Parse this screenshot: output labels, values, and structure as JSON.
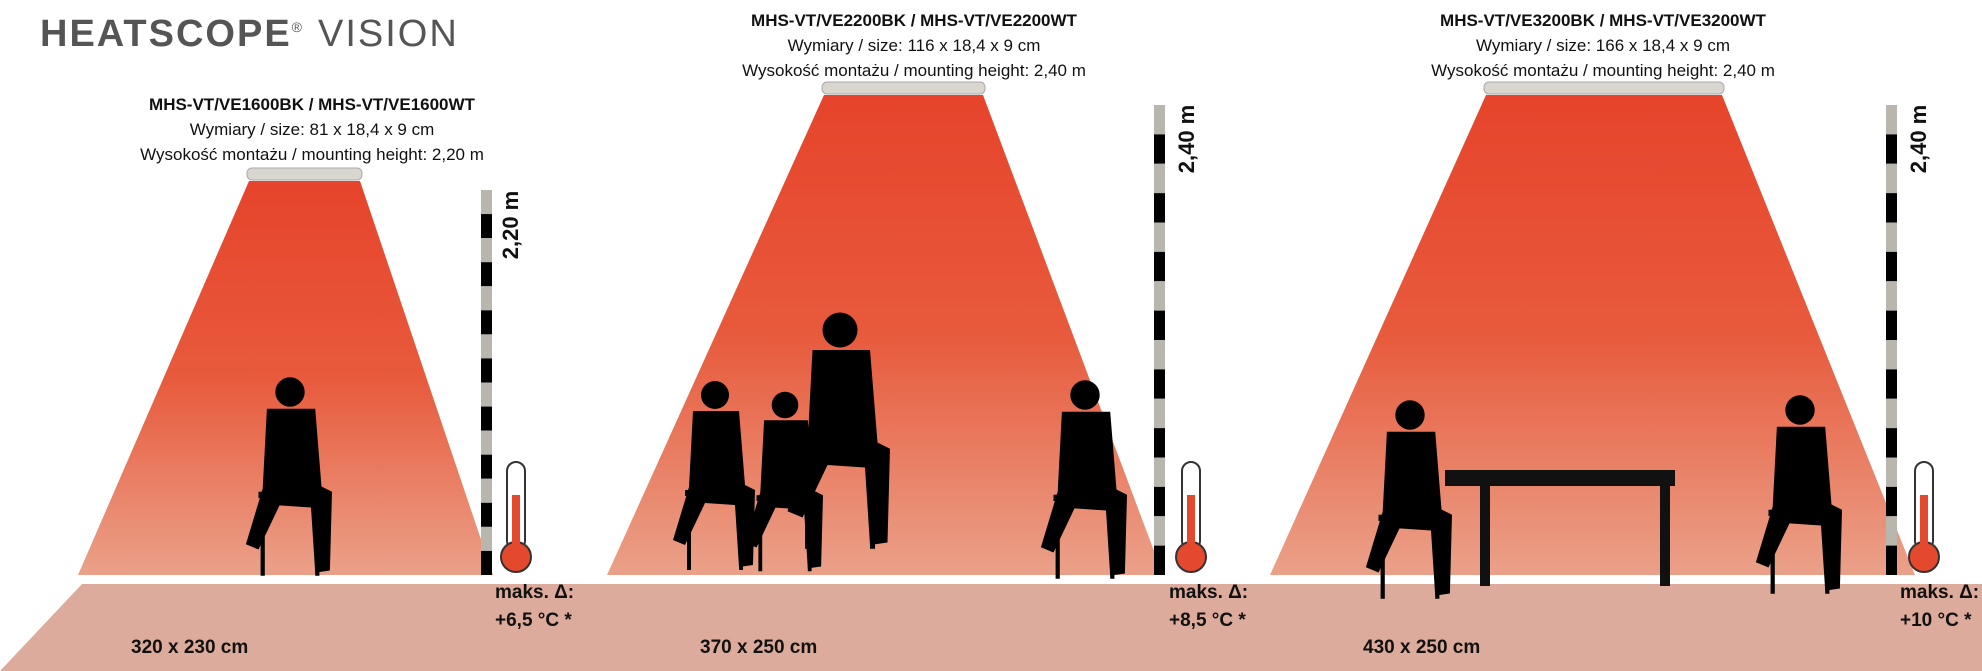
{
  "logo": {
    "brand": "HEATSCOPE",
    "registered": "®",
    "product": "VISION"
  },
  "panels": [
    {
      "model": "MHS-VT/VE1600BK / MHS-VT/VE1600WT",
      "size": "Wymiary / size: 81 x 18,4 x 9 cm",
      "mounting": "Wysokość montażu / mounting height: 2,20 m",
      "height": "2,20 m",
      "temp_label": "maks. Δ:",
      "temp_value": "+6,5 °C *",
      "area": "320 x 230 cm"
    },
    {
      "model": "MHS-VT/VE2200BK / MHS-VT/VE2200WT",
      "size": "Wymiary / size: 116 x 18,4 x 9 cm",
      "mounting": "Wysokość montażu / mounting height: 2,40 m",
      "height": "2,40 m",
      "temp_label": "maks. Δ:",
      "temp_value": "+8,5 °C *",
      "area": "370 x 250 cm"
    },
    {
      "model": "MHS-VT/VE3200BK / MHS-VT/VE3200WT",
      "size": "Wymiary / size: 166 x 18,4 x 9 cm",
      "mounting": "Wysokość montażu / mounting height: 2,40 m",
      "height": "2,40 m",
      "temp_label": "maks. Δ:",
      "temp_value": "+10 °C *",
      "area": "430 x 250 cm"
    }
  ]
}
